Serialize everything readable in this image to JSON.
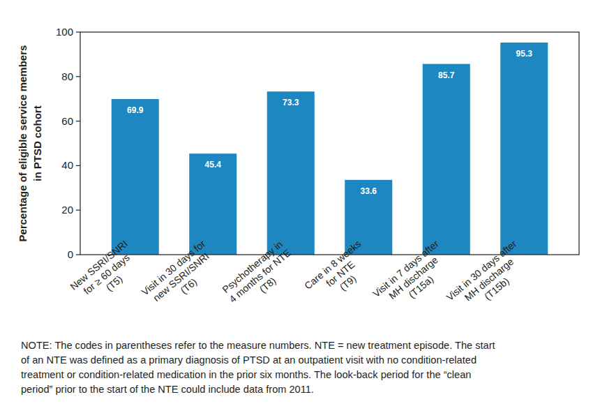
{
  "chart_data": {
    "type": "bar",
    "y_label": "Percentage of eligible service members\nin PTSD cohort",
    "categories": [
      "New SSRI/SNRI\nfor ≥ 60 days\n(T5)",
      "Visit in 30 days for\nnew SSRI/SNRI\n(T6)",
      "Psychotherapy in\n4 months for NTE\n(T8)",
      "Care in 8 weeks\nfor NTE\n(T9)",
      "Visit in 7 days after\nMH discharge\n(T15a)",
      "Visit in 30 days after\nMH discharge\n(T15b)"
    ],
    "values": [
      69.9,
      45.4,
      73.3,
      33.6,
      85.7,
      95.3
    ],
    "color": "#1d87c2",
    "ylim": [
      0,
      100
    ],
    "yticks": [
      0,
      20,
      40,
      60,
      80,
      100
    ],
    "grid": false,
    "data_labels": true,
    "note": "NOTE: The codes in parentheses refer to the measure numbers. NTE = new treatment episode. The start\nof an NTE was defined as a primary diagnosis of PTSD at an outpatient visit with no condition-related\ntreatment or condition-related medication in the prior six months. The look-back period for the “clean\nperiod” prior to the start of the NTE could include data from 2011."
  }
}
